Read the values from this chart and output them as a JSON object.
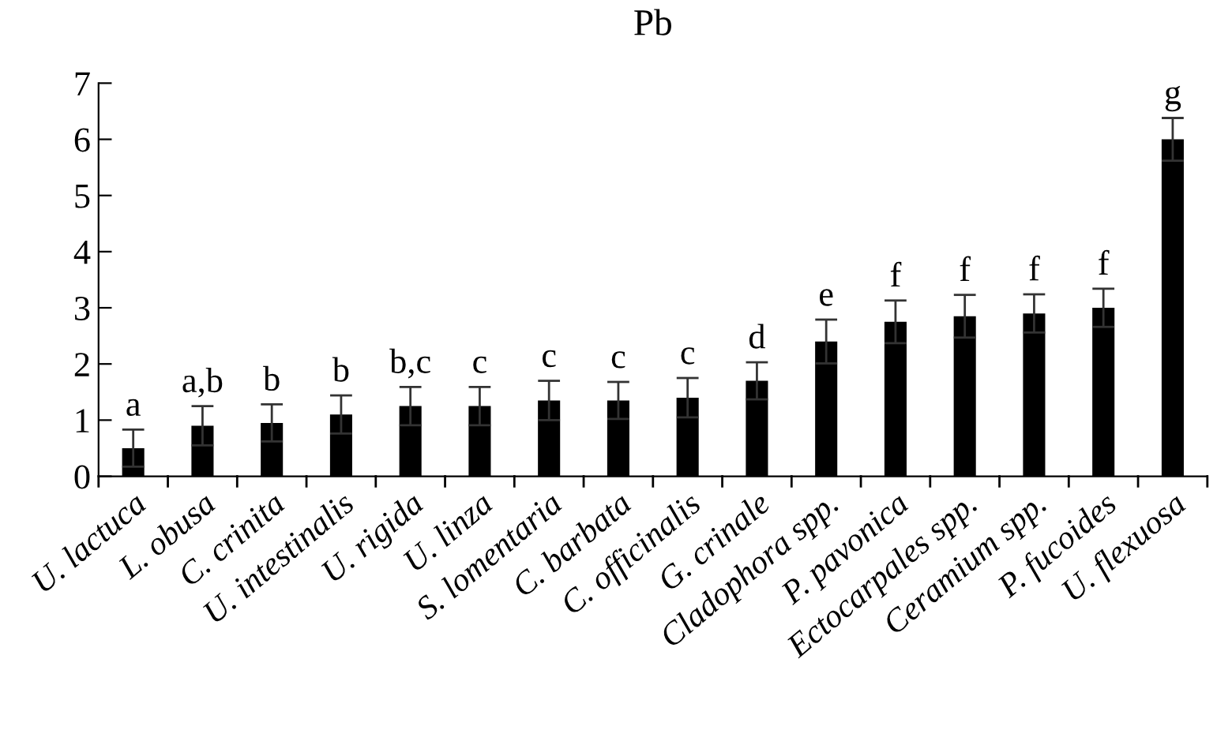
{
  "chart_data": {
    "type": "bar",
    "title": "Pb",
    "categories": [
      "U. lactuca",
      "L. obusa",
      "C. crinita",
      "U. intestinalis",
      "U. rigida",
      "U. linza",
      "S. lomentaria",
      "C. barbata",
      "C. officinalis",
      "G. crinale",
      "Cladophora spp.",
      "P. pavonica",
      "Ectocarpales spp.",
      "Ceramium spp.",
      "P. fucoides",
      "U. flexuosa"
    ],
    "values": [
      0.5,
      0.9,
      0.95,
      1.1,
      1.25,
      1.25,
      1.35,
      1.35,
      1.4,
      1.7,
      2.4,
      2.75,
      2.85,
      2.9,
      3.0,
      6.0
    ],
    "errors": [
      0.33,
      0.35,
      0.33,
      0.34,
      0.34,
      0.34,
      0.35,
      0.33,
      0.35,
      0.33,
      0.39,
      0.38,
      0.38,
      0.34,
      0.34,
      0.38
    ],
    "color": "#000000",
    "ylim": [
      0,
      7
    ],
    "yticks": [
      0,
      1,
      2,
      3,
      4,
      5,
      6,
      7
    ],
    "grid": false,
    "annotations": [
      "a",
      "a,b",
      "b",
      "b",
      "b,c",
      "c",
      "c",
      "c",
      "c",
      "d",
      "e",
      "f",
      "f",
      "f",
      "f",
      "g"
    ]
  }
}
